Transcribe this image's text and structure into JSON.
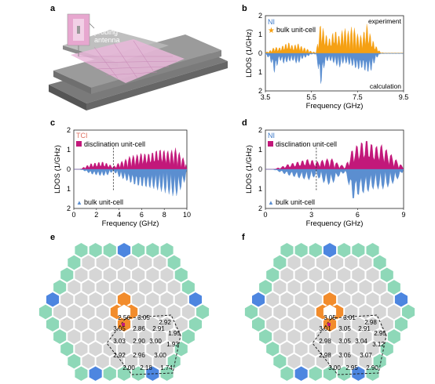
{
  "panels": {
    "a": {
      "letter": "a",
      "annotation": "probing\nantenna"
    },
    "b": {
      "letter": "b"
    },
    "c": {
      "letter": "c"
    },
    "d": {
      "letter": "d"
    },
    "e": {
      "letter": "e"
    },
    "f": {
      "letter": "f"
    }
  },
  "colors": {
    "experiment": "#F5A013",
    "calculation": "#5B8ED0",
    "disclination": "#C2187A",
    "tci_label": "#E07060",
    "ni_label": "#3C78C8",
    "hex_gray": "#D6D6D6",
    "hex_teal": "#8ED8B8",
    "hex_blue": "#4D86E0",
    "hex_orange": "#F28C2C"
  },
  "chart_data": [
    {
      "panel": "b",
      "type": "area",
      "title": "",
      "legend": [
        "NI",
        "bulk unit-cell"
      ],
      "top_label": "experiment",
      "bottom_label": "calculation",
      "xlabel": "Frequency (GHz)",
      "ylabel": "LDOS (1/GHz)",
      "xlim": [
        3.5,
        9.5
      ],
      "ylim": [
        -2,
        2
      ],
      "xticks": [
        "3.5",
        "5.5",
        "7.5",
        "9.5"
      ],
      "yticks_top": [
        "0",
        "1",
        "2"
      ],
      "yticks_bottom": [
        "1",
        "2"
      ],
      "series": [
        {
          "name": "experiment",
          "x": [
            3.5,
            3.7,
            3.9,
            4.1,
            4.3,
            4.5,
            4.7,
            4.9,
            5.1,
            5.3,
            5.5,
            5.7,
            5.9,
            6.1,
            6.3,
            6.5,
            6.7,
            6.9,
            7.1,
            7.3,
            7.5,
            7.7,
            7.9,
            8.1,
            8.3,
            8.5,
            8.7,
            8.9,
            9.1,
            9.3,
            9.5
          ],
          "values": [
            0.05,
            0.15,
            0.35,
            0.3,
            0.45,
            0.6,
            0.4,
            0.55,
            0.35,
            0.25,
            0.1,
            0.05,
            1.7,
            1.05,
            0.8,
            1.3,
            0.95,
            1.4,
            1.2,
            1.5,
            1.05,
            0.95,
            1.6,
            0.85,
            0.4,
            0.05,
            0.02,
            0.02,
            0.02,
            0.02,
            0.02
          ]
        },
        {
          "name": "calculation",
          "x": [
            3.5,
            3.7,
            3.9,
            4.1,
            4.3,
            4.5,
            4.7,
            4.9,
            5.1,
            5.3,
            5.5,
            5.7,
            5.9,
            6.1,
            6.3,
            6.5,
            6.7,
            6.9,
            7.1,
            7.3,
            7.5,
            7.7,
            7.9,
            8.1,
            8.3,
            8.5,
            8.7,
            8.9,
            9.1,
            9.3,
            9.5
          ],
          "values": [
            -0.1,
            -0.3,
            -1.1,
            -0.35,
            -0.55,
            -0.45,
            -0.4,
            -0.6,
            -0.3,
            -0.2,
            -0.05,
            -0.05,
            -1.75,
            -0.45,
            -0.4,
            -0.55,
            -0.8,
            -0.5,
            -0.6,
            -0.7,
            -0.9,
            -0.8,
            -1.05,
            -0.95,
            -0.3,
            -0.02,
            -0.02,
            -0.02,
            -0.02,
            -0.02,
            -0.02
          ]
        }
      ]
    },
    {
      "panel": "c",
      "type": "area",
      "title": "",
      "legend": [
        "TCI",
        "disclination unit-cell",
        "bulk unit-cell"
      ],
      "xlabel": "Frequency (GHz)",
      "ylabel": "LDOS (1/GHz)",
      "xlim": [
        0,
        10
      ],
      "ylim": [
        -2,
        2
      ],
      "xticks": [
        "0",
        "2",
        "4",
        "6",
        "8",
        "10"
      ],
      "yticks_top": [
        "0",
        "1",
        "2"
      ],
      "yticks_bottom": [
        "1",
        "2"
      ],
      "dashed_marker_x": 3.5,
      "series": [
        {
          "name": "disclination unit-cell",
          "x": [
            0,
            0.5,
            1,
            1.5,
            2,
            2.5,
            3,
            3.5,
            4,
            4.5,
            5,
            5.5,
            6,
            6.5,
            7,
            7.5,
            8,
            8.5,
            9,
            9.5,
            10
          ],
          "values": [
            0,
            0,
            0.15,
            0.3,
            0.35,
            0.4,
            0.3,
            0.15,
            0.35,
            0.5,
            0.7,
            0.75,
            0.85,
            0.8,
            0.9,
            1.05,
            1.0,
            0.95,
            1.1,
            0.75,
            0.3
          ]
        },
        {
          "name": "bulk unit-cell",
          "x": [
            0,
            0.5,
            1,
            1.5,
            2,
            2.5,
            3,
            3.5,
            4,
            4.5,
            5,
            5.5,
            6,
            6.5,
            7,
            7.5,
            8,
            8.5,
            9,
            9.5,
            10
          ],
          "values": [
            0,
            0,
            -0.1,
            -0.25,
            -0.3,
            -0.35,
            -0.3,
            -0.1,
            -0.4,
            -0.55,
            -0.7,
            -0.85,
            -0.9,
            -0.95,
            -1.0,
            -1.1,
            -1.2,
            -1.3,
            -1.45,
            -1.0,
            -0.4
          ]
        }
      ]
    },
    {
      "panel": "d",
      "type": "area",
      "title": "",
      "legend": [
        "NI",
        "disclination unit-cell",
        "bulk unit-cell"
      ],
      "xlabel": "Frequency (GHz)",
      "ylabel": "LDOS (1/GHz)",
      "xlim": [
        0,
        9.5
      ],
      "ylim": [
        -2,
        2
      ],
      "xticks": [
        "0",
        "3",
        "6",
        "9"
      ],
      "yticks_top": [
        "0",
        "1",
        "2"
      ],
      "yticks_bottom": [
        "1",
        "2"
      ],
      "dashed_marker_x": 3.5,
      "series": [
        {
          "name": "disclination unit-cell",
          "x": [
            0,
            0.5,
            1,
            1.5,
            2,
            2.5,
            3,
            3.5,
            4,
            4.5,
            5,
            5.5,
            6,
            6.5,
            7,
            7.5,
            8,
            8.5,
            9,
            9.5
          ],
          "values": [
            0,
            0,
            0.1,
            0.25,
            0.35,
            0.45,
            0.55,
            0.4,
            0.5,
            0.6,
            0.3,
            0.15,
            1.1,
            1.4,
            1.55,
            1.2,
            1.3,
            0.9,
            0.5,
            0.1
          ]
        },
        {
          "name": "bulk unit-cell",
          "x": [
            0,
            0.5,
            1,
            1.5,
            2,
            2.5,
            3,
            3.5,
            4,
            4.5,
            5,
            5.5,
            6,
            6.5,
            7,
            7.5,
            8,
            8.5,
            9,
            9.5
          ],
          "values": [
            0,
            0,
            -0.15,
            -0.3,
            -0.4,
            -0.5,
            -0.55,
            -0.35,
            -0.7,
            -0.85,
            -0.4,
            -0.15,
            -1.6,
            -1.3,
            -1.2,
            -1.0,
            -1.05,
            -0.9,
            -0.6,
            -0.1
          ]
        }
      ]
    }
  ],
  "lattice_values": {
    "e": [
      "2.56",
      "3.05",
      "2.92",
      "3.05",
      "2.86",
      "2.91",
      "1.95",
      "3.03",
      "2.90",
      "3.00",
      "1.93",
      "2.92",
      "2.96",
      "3.00",
      "2.00",
      "2.18",
      "1.74"
    ],
    "f": [
      "3.05",
      "3.01",
      "2.98",
      "3.01",
      "3.05",
      "2.91",
      "2.95",
      "2.98",
      "3.05",
      "3.04",
      "3.12",
      "2.98",
      "3.06",
      "3.07",
      "3.00",
      "2.95",
      "2.90"
    ]
  }
}
